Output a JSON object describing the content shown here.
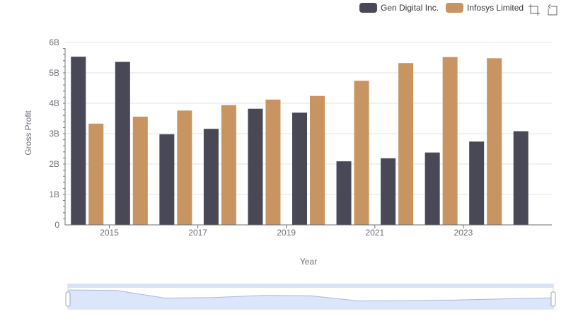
{
  "colors": {
    "series1": "#484857",
    "series2": "#c89461",
    "grid": "#e0e3ea",
    "axis": "#6e7079",
    "text": "#6e7079",
    "zoom_fill": "#dce6fb",
    "zoom_border": "#c8d5ee"
  },
  "legend": {
    "items": [
      {
        "label": "Gen Digital Inc.",
        "color": "#484857"
      },
      {
        "label": "Infosys Limited",
        "color": "#c89461"
      }
    ]
  },
  "toolbox": {
    "icons": [
      "zoom-select-icon",
      "zoom-reset-icon"
    ]
  },
  "chart_data": {
    "type": "bar",
    "categories": [
      "2014",
      "2015",
      "2016",
      "2017",
      "2018",
      "2019",
      "2020",
      "2021",
      "2022",
      "2023",
      "2024"
    ],
    "x_tick_labels": [
      "2015",
      "2017",
      "2019",
      "2021",
      "2023"
    ],
    "xlabel": "Year",
    "ylabel": "Gross Profit",
    "ylim": [
      0,
      6000000000
    ],
    "y_tick_labels": [
      "0",
      "1B",
      "2B",
      "3B",
      "4B",
      "5B",
      "6B"
    ],
    "grid": true,
    "legend_position": "top-right",
    "series": [
      {
        "name": "Gen Digital Inc.",
        "values": [
          5530000000,
          5360000000,
          2980000000,
          3160000000,
          3820000000,
          3690000000,
          2090000000,
          2190000000,
          2380000000,
          2740000000,
          3080000000
        ]
      },
      {
        "name": "Infosys Limited",
        "values": [
          3330000000,
          3560000000,
          3760000000,
          3940000000,
          4120000000,
          4240000000,
          4740000000,
          5320000000,
          5520000000,
          5480000000,
          null
        ]
      }
    ]
  }
}
